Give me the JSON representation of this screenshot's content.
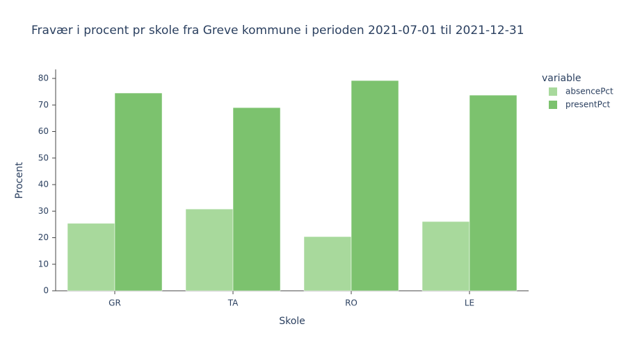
{
  "chart_data": {
    "type": "bar",
    "title": "Fravær i procent pr skole fra Greve kommune i perioden 2021-07-01 til 2021-12-31",
    "x_label": "Skole",
    "y_label": "Procent",
    "legend_title": "variable",
    "categories": [
      "GR",
      "TA",
      "RO",
      "LE"
    ],
    "series": [
      {
        "name": "absencePct",
        "color": "#a8d99c",
        "values": [
          25.4,
          30.8,
          20.4,
          26.1
        ]
      },
      {
        "name": "presentPct",
        "color": "#7cc26e",
        "values": [
          74.5,
          69.0,
          79.2,
          73.7
        ]
      }
    ],
    "ylim": [
      0,
      83.4
    ],
    "yticks": [
      0,
      10,
      20,
      30,
      40,
      50,
      60,
      70,
      80
    ],
    "grid": false
  }
}
